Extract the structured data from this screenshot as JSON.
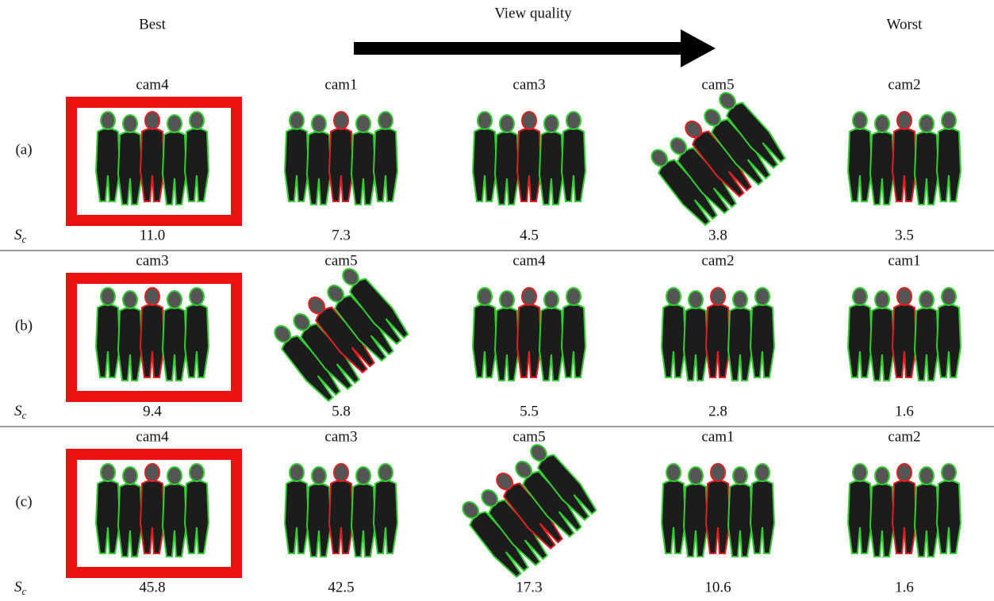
{
  "header": {
    "best": "Best",
    "title": "View quality",
    "worst": "Worst"
  },
  "score_symbol": "S",
  "score_subscript": "c",
  "rows": [
    {
      "label": "(a)",
      "cameras": [
        "cam4",
        "cam1",
        "cam3",
        "cam5",
        "cam2"
      ],
      "scores": [
        "11.0",
        "7.3",
        "4.5",
        "3.8",
        "3.5"
      ]
    },
    {
      "label": "(b)",
      "cameras": [
        "cam3",
        "cam5",
        "cam4",
        "cam2",
        "cam1"
      ],
      "scores": [
        "9.4",
        "5.8",
        "5.5",
        "2.8",
        "1.6"
      ]
    },
    {
      "label": "(c)",
      "cameras": [
        "cam4",
        "cam3",
        "cam5",
        "cam1",
        "cam2"
      ],
      "scores": [
        "45.8",
        "42.5",
        "17.3",
        "10.6",
        "1.6"
      ]
    }
  ]
}
